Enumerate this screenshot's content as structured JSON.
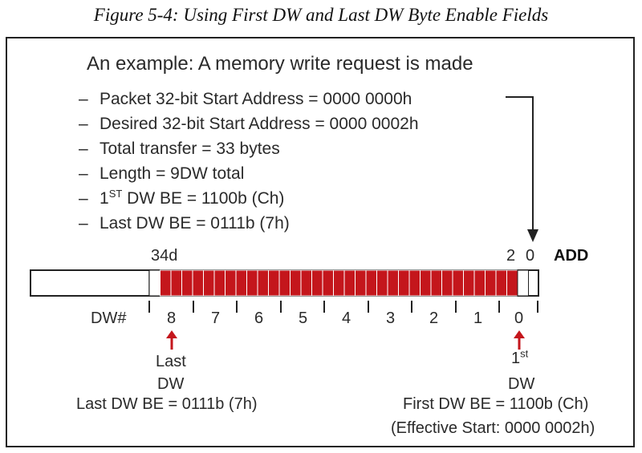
{
  "caption": "Figure 5-4: Using First DW and Last DW Byte Enable Fields",
  "example": {
    "heading": "An example: A memory write request is made",
    "bullet_dash": "–",
    "bullets": [
      "Packet 32-bit Start Address = 0000 0000h",
      "Desired 32-bit Start Address = 0000 0002h",
      "Total transfer = 33 bytes",
      "Length  = 9DW total"
    ],
    "first_be_prefix": "1",
    "first_be_sup": "ST",
    "first_be_rest": " DW BE = 1100b (Ch)",
    "last_be": "Last DW BE = 0111b (7h)"
  },
  "bar": {
    "label_34d": "34d",
    "label_2": "2",
    "label_0": "0",
    "label_add": "ADD",
    "fill_color": "#c4161c",
    "dw_label": "DW#",
    "dw_numbers": [
      "8",
      "7",
      "6",
      "5",
      "4",
      "3",
      "2",
      "1",
      "0"
    ]
  },
  "annotations": {
    "last_dw_line1": "Last",
    "last_dw_line2": "DW",
    "last_dw_be": "Last DW BE = 0111b (7h)",
    "first_dw_num": "1",
    "first_dw_sup": "st",
    "first_dw_line2": "DW",
    "first_dw_be": "First DW BE = 1100b (Ch)",
    "effective_start": "(Effective Start: 0000 0002h)"
  },
  "colors": {
    "accent_red": "#c4161c",
    "text": "#2a2a2a"
  }
}
